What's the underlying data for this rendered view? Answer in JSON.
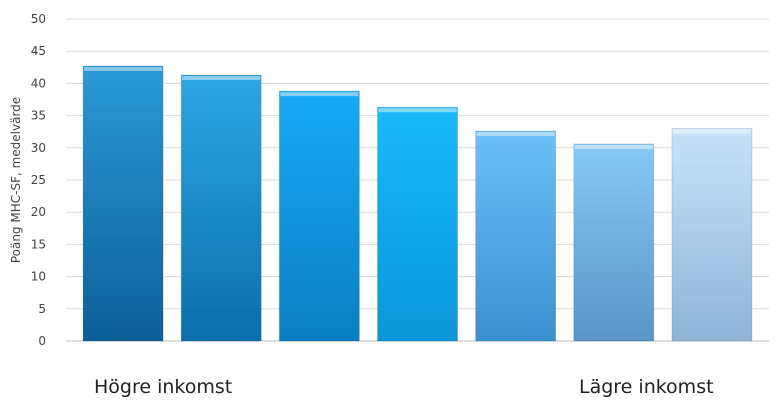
{
  "chart_data": {
    "type": "bar",
    "title": "",
    "xlabel": "",
    "ylabel": "Poäng MHC-SF, medelvärde",
    "ylim": [
      0,
      50
    ],
    "yticks": [
      0,
      5,
      10,
      15,
      20,
      25,
      30,
      35,
      40,
      45,
      50
    ],
    "grid": true,
    "values": [
      42.7,
      41.3,
      38.8,
      36.3,
      32.6,
      30.6,
      33.0
    ],
    "bar_colors": [
      [
        "#2a9ad8",
        "#0c5f96"
      ],
      [
        "#2fa6e6",
        "#0a6eaa"
      ],
      [
        "#18aaf5",
        "#0a7ec2"
      ],
      [
        "#18baf9",
        "#0a96d8"
      ],
      [
        "#6cc1f7",
        "#3b90ce"
      ],
      [
        "#86c9f6",
        "#5a95c8"
      ],
      [
        "#c7e3fb",
        "#8fb4d6"
      ]
    ]
  },
  "annotations": {
    "left": "Högre inkomst",
    "right": "Lägre inkomst"
  }
}
